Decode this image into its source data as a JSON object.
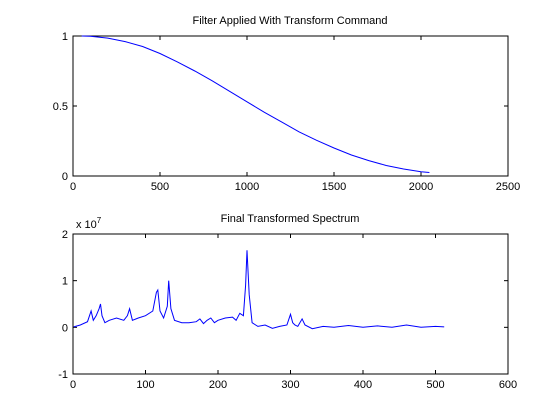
{
  "chart_data": [
    {
      "type": "line",
      "title": "Filter Applied With Transform Command",
      "xlabel": "",
      "ylabel": "",
      "xlim": [
        0,
        2500
      ],
      "ylim": [
        0,
        1
      ],
      "xticks": [
        0,
        500,
        1000,
        1500,
        2000,
        2500
      ],
      "xtick_labels": [
        "0",
        "500",
        "1000",
        "1500",
        "2000",
        "2500"
      ],
      "yticks": [
        0,
        0.5,
        1
      ],
      "ytick_labels": [
        "0",
        "0.5",
        "1"
      ],
      "grid": false,
      "legend": "none",
      "series": [
        {
          "color": "#0000ff",
          "x": [
            50,
            100,
            200,
            300,
            400,
            500,
            600,
            700,
            800,
            900,
            1000,
            1100,
            1200,
            1300,
            1400,
            1500,
            1600,
            1700,
            1800,
            1900,
            2000,
            2048
          ],
          "y": [
            1.0,
            0.998,
            0.985,
            0.96,
            0.925,
            0.875,
            0.815,
            0.75,
            0.68,
            0.605,
            0.53,
            0.455,
            0.385,
            0.315,
            0.255,
            0.2,
            0.15,
            0.11,
            0.075,
            0.05,
            0.03,
            0.025
          ]
        }
      ]
    },
    {
      "type": "line",
      "title": "Final Transformed Spectrum",
      "xlabel": "",
      "ylabel": "",
      "y_multiplier": "x 10^7",
      "y_multiplier_base": "x 10",
      "y_multiplier_exp": "7",
      "xlim": [
        0,
        600
      ],
      "ylim": [
        -1,
        2
      ],
      "xticks": [
        0,
        100,
        200,
        300,
        400,
        500,
        600
      ],
      "xtick_labels": [
        "0",
        "100",
        "200",
        "300",
        "400",
        "500",
        "600"
      ],
      "yticks": [
        -1,
        0,
        1,
        2
      ],
      "ytick_labels": [
        "-1",
        "0",
        "1",
        "2"
      ],
      "grid": false,
      "legend": "none",
      "series": [
        {
          "color": "#0000ff",
          "x": [
            1,
            10,
            20,
            25,
            28,
            32,
            36,
            38,
            40,
            44,
            50,
            60,
            70,
            75,
            78,
            82,
            90,
            100,
            110,
            115,
            117,
            120,
            125,
            130,
            132,
            135,
            140,
            150,
            160,
            170,
            175,
            180,
            185,
            190,
            195,
            200,
            210,
            220,
            225,
            230,
            235,
            238,
            240,
            243,
            247,
            255,
            265,
            275,
            285,
            295,
            300,
            303,
            306,
            310,
            316,
            320,
            330,
            345,
            360,
            380,
            400,
            420,
            440,
            460,
            480,
            500,
            512
          ],
          "y": [
            0.01,
            0.05,
            0.12,
            0.35,
            0.15,
            0.25,
            0.4,
            0.5,
            0.25,
            0.1,
            0.15,
            0.2,
            0.15,
            0.25,
            0.4,
            0.15,
            0.2,
            0.25,
            0.35,
            0.75,
            0.8,
            0.35,
            0.2,
            0.45,
            1.0,
            0.4,
            0.15,
            0.1,
            0.1,
            0.12,
            0.18,
            0.08,
            0.15,
            0.2,
            0.1,
            0.15,
            0.2,
            0.22,
            0.15,
            0.3,
            0.25,
            0.9,
            1.65,
            0.7,
            0.1,
            0.02,
            0.05,
            -0.02,
            0.02,
            0.05,
            0.28,
            0.1,
            0.05,
            0.02,
            0.18,
            0.05,
            -0.03,
            0.02,
            0.0,
            0.04,
            0.0,
            0.03,
            0.0,
            0.05,
            0.0,
            0.02,
            0.01
          ]
        }
      ]
    }
  ]
}
